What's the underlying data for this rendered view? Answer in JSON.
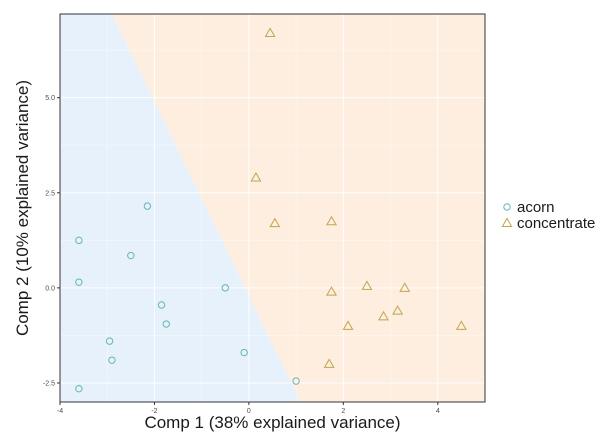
{
  "chart_data": {
    "type": "scatter",
    "title": "",
    "xlabel": "Comp 1 (38% explained variance)",
    "ylabel": "Comp 2 (10% explained variance)",
    "xlim": [
      -4,
      5
    ],
    "ylim": [
      -3.0,
      7.2
    ],
    "xticks": [
      -4,
      -2,
      0,
      2,
      4
    ],
    "xtick_labels": [
      "-4",
      "-2",
      "0",
      "2",
      "4"
    ],
    "yticks": [
      -2.5,
      0.0,
      2.5,
      5.0
    ],
    "ytick_labels": [
      "-2.5",
      "0.0",
      "2.5",
      "5.0"
    ],
    "grid": true,
    "legend_position": "right",
    "decision_regions": {
      "boundary": [
        [
          -2.9,
          7.2
        ],
        [
          1.1,
          -3.0
        ]
      ],
      "left_class": "acorn",
      "right_class": "concentrate",
      "left_color": "#e6f1fb",
      "right_color": "#fdeee0"
    },
    "series": [
      {
        "name": "acorn",
        "marker": "circle",
        "color": "#63b7b5",
        "points": [
          [
            -3.6,
            1.25
          ],
          [
            -3.6,
            0.15
          ],
          [
            -3.6,
            -2.65
          ],
          [
            -2.95,
            -1.4
          ],
          [
            -2.9,
            -1.9
          ],
          [
            -2.5,
            0.85
          ],
          [
            -2.15,
            2.15
          ],
          [
            -1.85,
            -0.45
          ],
          [
            -1.75,
            -0.95
          ],
          [
            -0.5,
            0.0
          ],
          [
            -0.1,
            -1.7
          ],
          [
            1.0,
            -2.45
          ]
        ]
      },
      {
        "name": "concentrate",
        "marker": "triangle",
        "color": "#c2a54c",
        "points": [
          [
            0.45,
            6.7
          ],
          [
            0.15,
            2.9
          ],
          [
            0.55,
            1.7
          ],
          [
            1.75,
            1.75
          ],
          [
            1.75,
            -0.1
          ],
          [
            2.5,
            0.05
          ],
          [
            3.3,
            0.0
          ],
          [
            3.15,
            -0.6
          ],
          [
            2.85,
            -0.75
          ],
          [
            2.1,
            -1.0
          ],
          [
            4.5,
            -1.0
          ],
          [
            1.7,
            -2.0
          ]
        ]
      }
    ]
  }
}
